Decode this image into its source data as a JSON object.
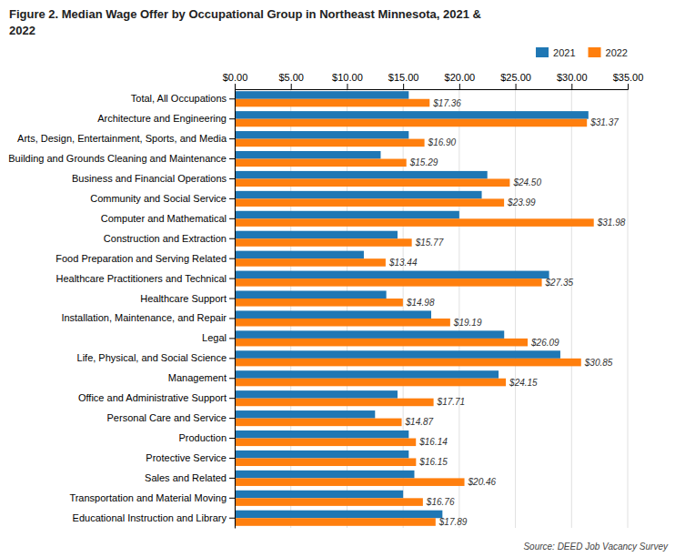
{
  "chart_data": {
    "type": "bar",
    "orientation": "horizontal",
    "title": "Figure 2. Median Wage Offer by Occupational Group in Northeast Minnesota, 2021 &\n2022",
    "source": "Source: DEED Job Vacancy Survey",
    "categories": [
      "Total, All Occupations",
      "Architecture and Engineering",
      "Arts, Design, Entertainment, Sports, and Media",
      "Building and Grounds Cleaning and Maintenance",
      "Business and Financial Operations",
      "Community and Social Service",
      "Computer and Mathematical",
      "Construction and Extraction",
      "Food Preparation and Serving Related",
      "Healthcare Practitioners and Technical",
      "Healthcare Support",
      "Installation, Maintenance, and Repair",
      "Legal",
      "Life, Physical, and Social Science",
      "Management",
      "Office and Administrative Support",
      "Personal Care and Service",
      "Production",
      "Protective Service",
      "Sales and Related",
      "Transportation and Material Moving",
      "Educational Instruction and Library"
    ],
    "series": [
      {
        "name": "2021",
        "values": [
          15.5,
          31.5,
          15.5,
          13.0,
          22.5,
          22.0,
          20.0,
          14.5,
          11.5,
          28.0,
          13.5,
          17.5,
          24.0,
          29.0,
          23.5,
          14.5,
          12.5,
          15.5,
          15.5,
          16.0,
          15.0,
          18.5
        ]
      },
      {
        "name": "2022",
        "values": [
          17.36,
          31.37,
          16.9,
          15.29,
          24.5,
          23.99,
          31.98,
          15.77,
          13.44,
          27.35,
          14.98,
          19.19,
          26.09,
          30.85,
          24.15,
          17.71,
          14.87,
          16.14,
          16.15,
          20.46,
          16.76,
          17.89
        ],
        "data_labels": true,
        "value_labels": [
          "$17.36",
          "$31.37",
          "$16.90",
          "$15.29",
          "$24.50",
          "$23.99",
          "$31.98",
          "$15.77",
          "$13.44",
          "$27.35",
          "$14.98",
          "$19.19",
          "$26.09",
          "$30.85",
          "$24.15",
          "$17.71",
          "$14.87",
          "$16.14",
          "$16.15",
          "$20.46",
          "$16.76",
          "$17.89"
        ]
      }
    ],
    "xlim": [
      0,
      35
    ],
    "xticks": [
      {
        "value": 0,
        "label": "$0.00"
      },
      {
        "value": 5,
        "label": "$5.00"
      },
      {
        "value": 10,
        "label": "$10.00"
      },
      {
        "value": 15,
        "label": "$15.00"
      },
      {
        "value": 20,
        "label": "$20.00"
      },
      {
        "value": 25,
        "label": "$25.00"
      },
      {
        "value": 30,
        "label": "$30.00"
      },
      {
        "value": 35,
        "label": "$35.00"
      }
    ],
    "grid": true,
    "legend": "upper right"
  }
}
